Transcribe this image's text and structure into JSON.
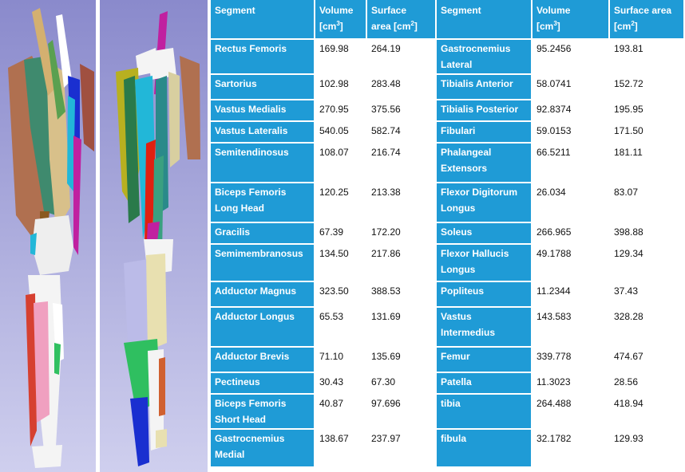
{
  "colors": {
    "header_bg": "#1f9bd6",
    "segment_bg": "#1f9bd6",
    "value_bg": "#ffffff",
    "render_bg_top": "#8f8fd0",
    "render_bg_bottom": "#c9c9ea"
  },
  "headers": {
    "segment": "Segment",
    "volume": "Volume [cm3]",
    "surface": "Surface area [cm2]"
  },
  "rows": [
    {
      "seg1": "Rectus Femoris",
      "vol1": "169.98",
      "sa1": "264.19",
      "seg2": "Gastrocnemius Lateral",
      "vol2": "95.2456",
      "sa2": "193.81"
    },
    {
      "seg1": "Sartorius",
      "vol1": "102.98",
      "sa1": "283.48",
      "seg2": "Tibialis Anterior",
      "vol2": "58.0741",
      "sa2": "152.72"
    },
    {
      "seg1": "Vastus Medialis",
      "vol1": "270.95",
      "sa1": "375.56",
      "seg2": "Tibialis Posterior",
      "vol2": "92.8374",
      "sa2": "195.95"
    },
    {
      "seg1": "Vastus Lateralis",
      "vol1": "540.05",
      "sa1": "582.74",
      "seg2": "Fibulari",
      "vol2": "59.0153",
      "sa2": "171.50"
    },
    {
      "seg1": "Semitendinosus",
      "vol1": "108.07",
      "sa1": "216.74",
      "seg2": "Phalangeal Extensors",
      "vol2": "66.5211",
      "sa2": "181.11"
    },
    {
      "seg1": "Biceps Femoris Long Head",
      "vol1": "120.25",
      "sa1": "213.38",
      "seg2": "Flexor Digitorum Longus",
      "vol2": "26.034",
      "sa2": "83.07"
    },
    {
      "seg1": "Gracilis",
      "vol1": "67.39",
      "sa1": "172.20",
      "seg2": "Soleus",
      "vol2": "266.965",
      "sa2": "398.88"
    },
    {
      "seg1": "Semimembranosus",
      "vol1": "134.50",
      "sa1": "217.86",
      "seg2": "Flexor Hallucis Longus",
      "vol2": "49.1788",
      "sa2": "129.34"
    },
    {
      "seg1": "Adductor Magnus",
      "vol1": "323.50",
      "sa1": "388.53",
      "seg2": "Popliteus",
      "vol2": "11.2344",
      "sa2": "37.43"
    },
    {
      "seg1": "Adductor Longus",
      "vol1": "65.53",
      "sa1": "131.69",
      "seg2": "Vastus Intermedius",
      "vol2": "143.583",
      "sa2": "328.28"
    },
    {
      "seg1": "Adductor Brevis",
      "vol1": "71.10",
      "sa1": "135.69",
      "seg2": "Femur",
      "vol2": "339.778",
      "sa2": "474.67"
    },
    {
      "seg1": "Pectineus",
      "vol1": "30.43",
      "sa1": "67.30",
      "seg2": "Patella",
      "vol2": "11.3023",
      "sa2": "28.56"
    },
    {
      "seg1": "Biceps Femoris Short Head",
      "vol1": "40.87",
      "sa1": "97.696",
      "seg2": "tibia",
      "vol2": "264.488",
      "sa2": "418.94"
    },
    {
      "seg1": "Gastrocnemius Medial",
      "vol1": "138.67",
      "sa1": "237.97",
      "seg2": "fibula",
      "vol2": "32.1782",
      "sa2": "129.93"
    }
  ]
}
